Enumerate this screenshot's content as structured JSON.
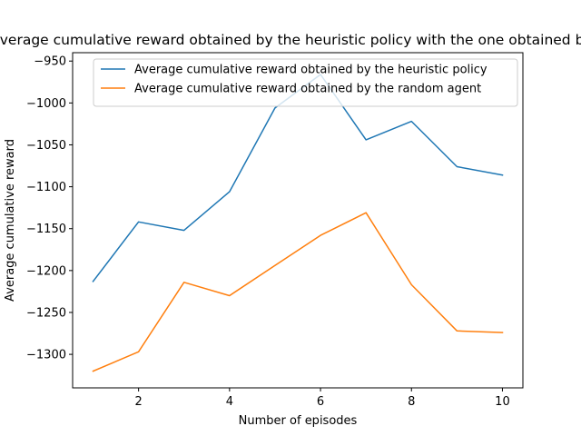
{
  "chart_data": {
    "type": "line",
    "title": "Comparison of the average cumulative reward obtained by the heuristic policy with the one obtained by the random agent",
    "xlabel": "Number of episodes",
    "ylabel": "Average cumulative reward",
    "xlim": [
      0.55,
      10.45
    ],
    "ylim": [
      -1340,
      -940
    ],
    "xticks": [
      2,
      4,
      6,
      8,
      10
    ],
    "yticks": [
      -1300,
      -1250,
      -1200,
      -1150,
      -1100,
      -1050,
      -1000,
      -950
    ],
    "x": [
      1,
      2,
      3,
      4,
      5,
      6,
      7,
      8,
      9,
      10
    ],
    "series": [
      {
        "name": "Average cumulative reward obtained by the heuristic policy",
        "color": "#1f77b4",
        "values": [
          -1213,
          -1142,
          -1152,
          -1106,
          -1006,
          -966,
          -1044,
          -1022,
          -1076,
          -1086
        ]
      },
      {
        "name": "Average cumulative reward obtained by the random agent",
        "color": "#ff7f0e",
        "values": [
          -1320,
          -1297,
          -1214,
          -1230,
          -1194,
          -1158,
          -1131,
          -1217,
          -1272,
          -1274
        ]
      }
    ],
    "grid": false,
    "legend_position": "top-right"
  }
}
